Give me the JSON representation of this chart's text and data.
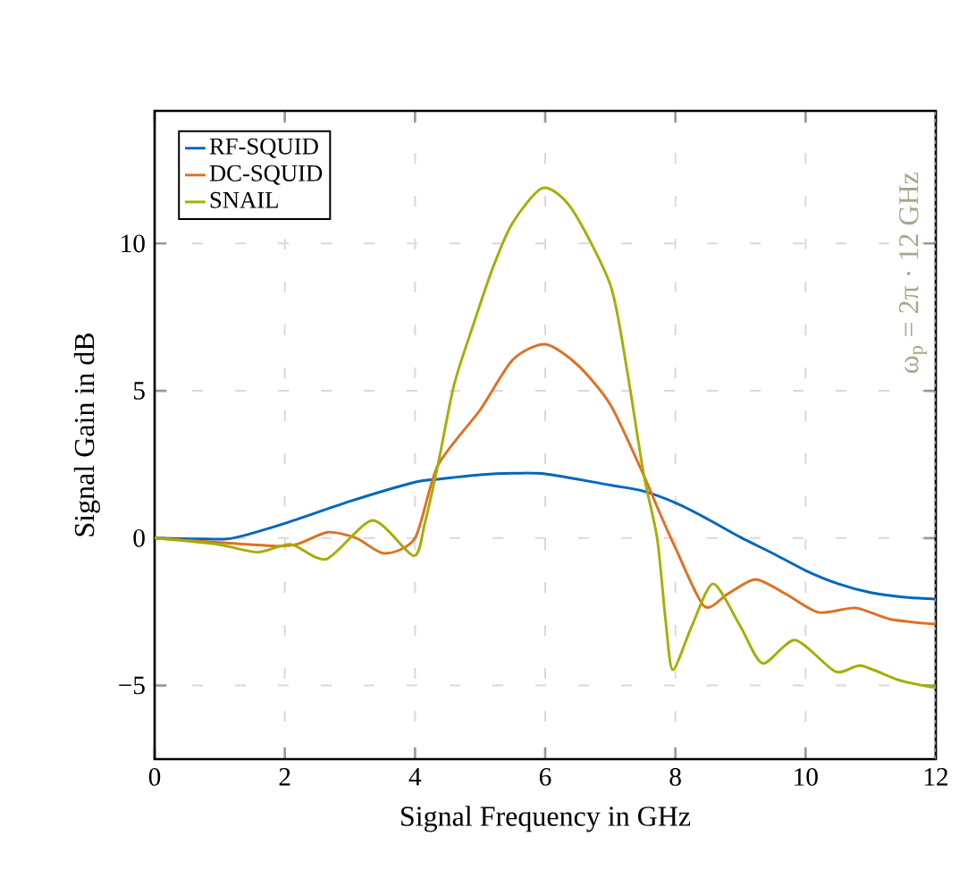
{
  "chart_data": {
    "type": "line",
    "xlabel": "Signal Frequency in GHz",
    "ylabel": "Signal Gain in dB",
    "xlim": [
      0,
      12
    ],
    "ylim": [
      -7.5,
      14.5
    ],
    "xticks": [
      0,
      2,
      4,
      6,
      8,
      10,
      12
    ],
    "yticks": [
      {
        "value": -5,
        "label": "−5"
      },
      0,
      5,
      10
    ],
    "grid": true,
    "legend": "top left",
    "ref_lines": [
      {
        "axis": "x",
        "value": 12,
        "label": "ω$_{p}$ = 2π · 12 GHz",
        "color": "#aaa58c",
        "line_style": "dashed"
      }
    ],
    "series": [
      {
        "name": "RF-SQUID",
        "color": "#0066bf",
        "x": [
          0,
          0.5,
          0.8,
          1.2,
          2,
          3,
          4,
          4.35,
          5,
          5.5,
          6,
          7,
          7.5,
          8,
          8.5,
          9,
          9.5,
          10,
          10.5,
          11,
          11.5,
          12
        ],
        "values": [
          0,
          -0.02,
          -0.03,
          0,
          0.5,
          1.25,
          1.9,
          2.0,
          2.15,
          2.2,
          2.18,
          1.8,
          1.6,
          1.2,
          0.64,
          0.03,
          -0.52,
          -1.1,
          -1.55,
          -1.85,
          -2.0,
          -2.07
        ]
      },
      {
        "name": "DC-SQUID",
        "color": "#e07020",
        "x": [
          0,
          1,
          1.88,
          2.2,
          2.66,
          3.1,
          3.53,
          4,
          4.35,
          5,
          5.5,
          6,
          6.5,
          7,
          7.5,
          7.75,
          8,
          8.44,
          8.8,
          9.23,
          9.7,
          10.2,
          10.77,
          11.3,
          12
        ],
        "values": [
          0,
          -0.15,
          -0.27,
          -0.2,
          0.2,
          0,
          -0.52,
          0,
          2.46,
          4.35,
          6.05,
          6.58,
          5.87,
          4.53,
          2.2,
          0.9,
          -0.33,
          -2.31,
          -1.9,
          -1.4,
          -1.9,
          -2.52,
          -2.37,
          -2.75,
          -2.92
        ]
      },
      {
        "name": "SNAIL",
        "color": "#a2b000",
        "x": [
          0,
          0.96,
          1.58,
          2.09,
          2.64,
          3.35,
          3.98,
          4.15,
          4.35,
          4.6,
          4.9,
          5.2,
          5.5,
          5.96,
          6.4,
          7.0,
          7.25,
          7.51,
          7.72,
          7.85,
          7.96,
          8.25,
          8.58,
          9.0,
          9.34,
          9.84,
          10.46,
          10.85,
          11.45,
          12
        ],
        "values": [
          0,
          -0.21,
          -0.48,
          -0.21,
          -0.71,
          0.6,
          -0.6,
          0.5,
          2.46,
          5.2,
          7.27,
          9.2,
          10.7,
          11.88,
          11.2,
          8.6,
          5.8,
          2.2,
          0,
          -2.8,
          -4.47,
          -3.0,
          -1.55,
          -3.0,
          -4.25,
          -3.46,
          -4.53,
          -4.33,
          -4.83,
          -5.08
        ]
      }
    ]
  }
}
